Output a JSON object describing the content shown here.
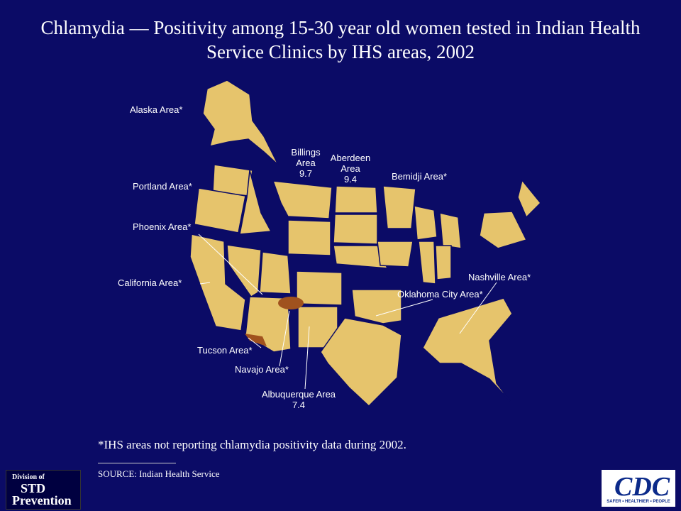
{
  "title": "Chlamydia — Positivity among 15-30 year old women tested in Indian Health Service Clinics by IHS areas, 2002",
  "areas": [
    {
      "label": "Alaska Area*"
    },
    {
      "label": "Billings Area",
      "value": 9.7
    },
    {
      "label": "Aberdeen Area",
      "value": 9.4
    },
    {
      "label": "Bemidji Area*"
    },
    {
      "label": "Portland Area*"
    },
    {
      "label": "Phoenix Area*"
    },
    {
      "label": "California Area*"
    },
    {
      "label": "Nashville Area*"
    },
    {
      "label": "Oklahoma City Area*"
    },
    {
      "label": "Tucson Area*"
    },
    {
      "label": "Navajo Area*"
    },
    {
      "label": "Albuquerque Area",
      "value": 7.4
    }
  ],
  "footnote": "*IHS areas not reporting chlamydia positivity data during 2002.",
  "source": "SOURCE: Indian Health Service",
  "logos": {
    "std": {
      "line1": "Division of",
      "line2": "STD",
      "line3": "Prevention"
    },
    "cdc": {
      "name": "CDC",
      "tagline": "SAFER • HEALTHIER • PEOPLE"
    }
  }
}
